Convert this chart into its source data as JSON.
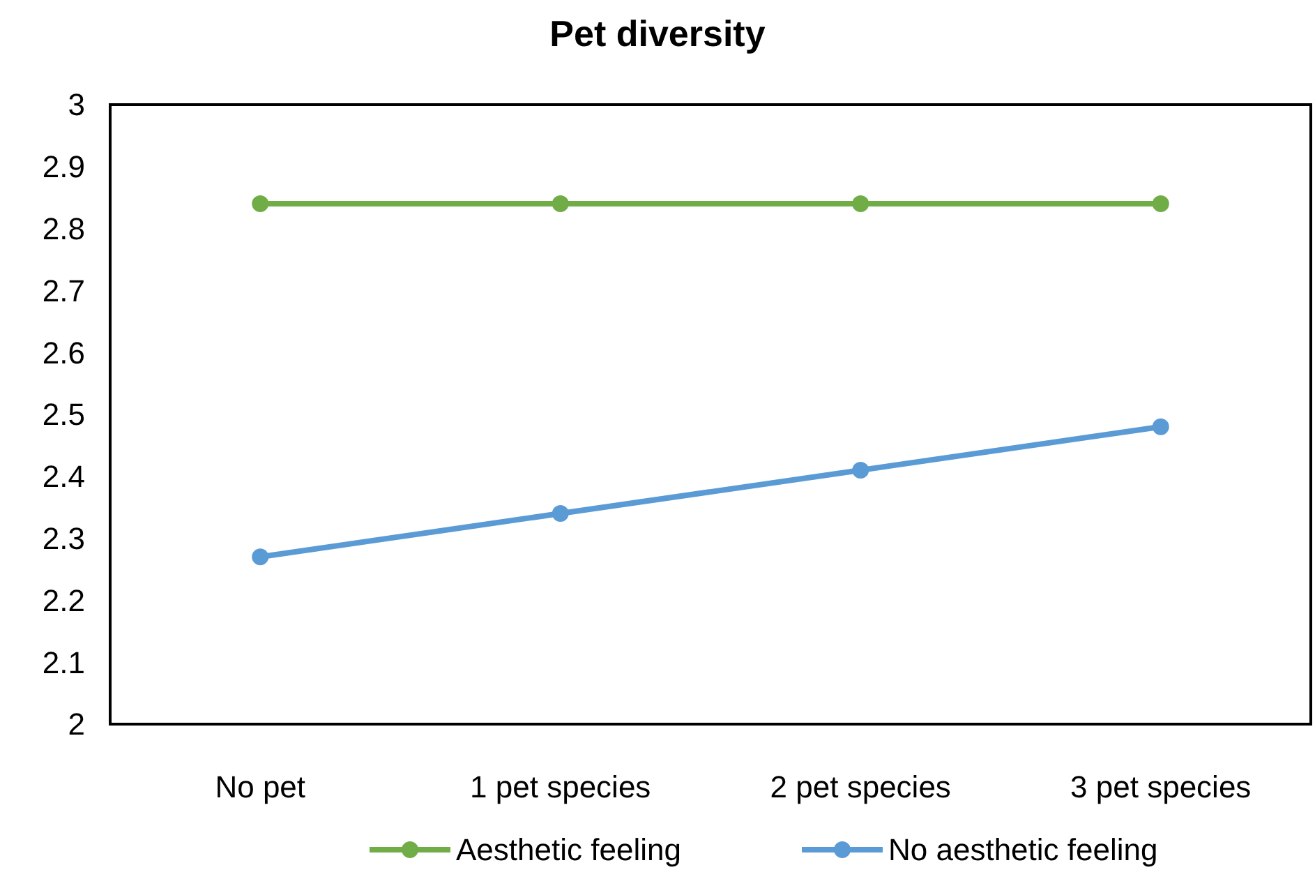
{
  "chart_data": {
    "type": "line",
    "title": "Pet diversity",
    "categories": [
      "No pet",
      "1 pet species",
      "2 pet species",
      "3 pet species"
    ],
    "series": [
      {
        "name": "Aesthetic feeling",
        "color": "#70ad47",
        "values": [
          2.84,
          2.84,
          2.84,
          2.84
        ]
      },
      {
        "name": "No aesthetic feeling",
        "color": "#5b9bd5",
        "values": [
          2.27,
          2.34,
          2.41,
          2.48
        ]
      }
    ],
    "ylim": [
      2,
      3
    ],
    "yticks": [
      2,
      2.1,
      2.2,
      2.3,
      2.4,
      2.5,
      2.6,
      2.7,
      2.8,
      2.9,
      3
    ],
    "grid": false,
    "legend": "bottom",
    "marker": "circle",
    "line_style": "solid"
  }
}
